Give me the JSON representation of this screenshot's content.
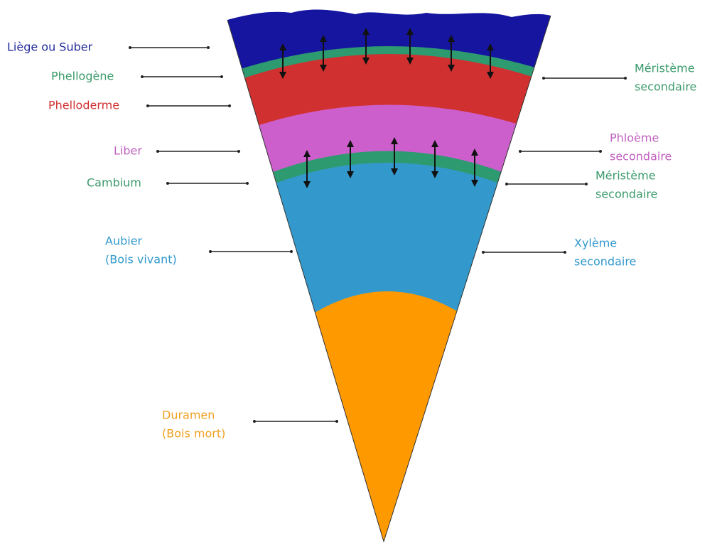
{
  "left_labels": [
    {
      "lines": [
        "Liège ou Suber"
      ]
    },
    {
      "lines": [
        "Phellogène"
      ]
    },
    {
      "lines": [
        "Phelloderme"
      ]
    },
    {
      "lines": [
        "Liber"
      ]
    },
    {
      "lines": [
        "Cambium"
      ]
    },
    {
      "lines": [
        "Aubier",
        "(Bois vivant)"
      ]
    },
    {
      "lines": [
        "Duramen",
        "(Bois mort)"
      ]
    }
  ],
  "right_labels": [
    {
      "lines": [
        "Méristème",
        "secondaire"
      ]
    },
    {
      "lines": [
        "Phloème",
        "secondaire"
      ]
    },
    {
      "lines": [
        "Méristème",
        "secondaire"
      ]
    },
    {
      "lines": [
        "Xylème",
        "secondaire"
      ]
    }
  ]
}
